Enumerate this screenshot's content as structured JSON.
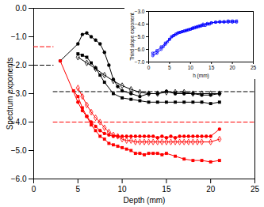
{
  "chart_data": [
    {
      "type": "line",
      "xlabel": "Depth (mm)",
      "ylabel": "Spectrum exponents",
      "xlim": [
        0,
        25
      ],
      "ylim": [
        -6,
        0
      ],
      "xticks": [
        0,
        5,
        10,
        15,
        20,
        25
      ],
      "yticks": [
        0,
        -1,
        -2,
        -3,
        -4,
        -5,
        -6
      ],
      "series": [
        {
          "color": "red",
          "line_style": "dashed",
          "x": [
            0,
            2.2
          ],
          "values": [
            -1.35,
            -1.35
          ]
        },
        {
          "color": "black",
          "line_style": "dashed",
          "x": [
            0,
            2.2
          ],
          "values": [
            -2.0,
            -2.0
          ]
        },
        {
          "color": "black",
          "line_style": "dashed",
          "x": [
            2.2,
            25
          ],
          "values": [
            -2.93,
            -2.93
          ]
        },
        {
          "color": "red",
          "line_style": "dashed",
          "x": [
            2.2,
            25
          ],
          "values": [
            -4.0,
            -4.0
          ]
        },
        {
          "color": "black",
          "marker": "circle",
          "line_style": "solid",
          "x": [
            3.0,
            5.0,
            5.5,
            6.0,
            6.5,
            7.0,
            7.5,
            8.0,
            8.5,
            9.0,
            9.5,
            10.0,
            11.0,
            12.0,
            13.0,
            14.0,
            15.0,
            16.0,
            17.0,
            18.0,
            19.0,
            20.0,
            21.0
          ],
          "values": [
            -1.85,
            -1.25,
            -0.92,
            -0.87,
            -1.0,
            -1.12,
            -1.25,
            -1.55,
            -2.0,
            -2.5,
            -2.75,
            -2.9,
            -3.0,
            -3.1,
            -3.0,
            -3.0,
            -2.92,
            -3.0,
            -3.0,
            -3.0,
            -3.05,
            -3.05,
            -3.0
          ]
        },
        {
          "color": "black",
          "marker": "square",
          "line_style": "solid",
          "x": [
            5.0,
            5.5,
            6.0,
            6.5,
            7.0,
            7.5,
            8.0,
            9.0,
            10.0,
            11.0,
            12.0,
            13.0,
            14.0,
            15.0,
            16.0,
            17.0,
            18.0,
            19.0,
            20.0,
            21.0
          ],
          "values": [
            -1.6,
            -1.65,
            -1.72,
            -1.92,
            -2.1,
            -2.35,
            -2.6,
            -3.0,
            -3.15,
            -3.2,
            -3.25,
            -3.3,
            -3.3,
            -3.3,
            -3.3,
            -3.3,
            -3.3,
            -3.3,
            -3.35,
            -3.3
          ]
        },
        {
          "color": "black",
          "marker": "open_diamond",
          "line_style": "solid",
          "x": [
            5.0,
            6.0,
            7.0,
            8.0,
            9.0,
            10.0,
            11.0,
            12.0,
            13.0,
            14.0,
            15.0,
            16.0,
            17.0,
            18.0,
            19.0,
            20.0,
            21.0
          ],
          "values": [
            -1.72,
            -1.92,
            -2.12,
            -2.35,
            -2.55,
            -2.72,
            -2.85,
            -2.95,
            -3.0,
            -3.0,
            -2.95,
            -2.95,
            -2.95,
            -3.0,
            -3.0,
            -3.0,
            -3.0
          ]
        },
        {
          "color": "red",
          "marker": "circle",
          "line_style": "solid",
          "x": [
            3.0,
            5.0,
            5.5,
            6.0,
            6.5,
            7.0,
            7.5,
            8.0,
            8.5,
            9.0,
            9.5,
            10.0,
            10.5,
            11.0,
            11.5,
            12.0,
            12.5,
            13.0,
            13.5,
            14.0,
            14.5,
            15.0,
            15.5,
            16.0,
            16.5,
            17.0,
            17.5,
            18.0,
            18.5,
            19.0,
            19.5,
            20.0,
            21.0
          ],
          "values": [
            -1.85,
            -3.3,
            -3.6,
            -3.8,
            -4.0,
            -4.15,
            -4.3,
            -4.4,
            -4.45,
            -4.5,
            -4.5,
            -4.5,
            -4.5,
            -4.5,
            -4.5,
            -4.5,
            -4.5,
            -4.5,
            -4.5,
            -4.55,
            -4.5,
            -4.55,
            -4.5,
            -4.55,
            -4.5,
            -4.5,
            -4.5,
            -4.5,
            -4.5,
            -4.5,
            -4.5,
            -4.5,
            -4.25
          ]
        },
        {
          "color": "red",
          "marker": "square",
          "line_style": "solid",
          "x": [
            4.5,
            5.0,
            5.5,
            6.0,
            6.5,
            7.0,
            7.5,
            8.0,
            8.5,
            9.0,
            9.5,
            10.0,
            10.5,
            11.0,
            11.5,
            12.0,
            12.5,
            13.0,
            13.5,
            14.0,
            14.5,
            15.0,
            16.0,
            17.0,
            18.0,
            19.0,
            20.0,
            21.0
          ],
          "values": [
            -2.9,
            -3.1,
            -3.5,
            -3.8,
            -4.1,
            -4.3,
            -4.5,
            -4.6,
            -4.75,
            -4.8,
            -4.85,
            -4.9,
            -4.95,
            -5.0,
            -5.1,
            -5.1,
            -5.15,
            -5.1,
            -5.1,
            -5.1,
            -5.15,
            -5.1,
            -5.2,
            -5.3,
            -5.35,
            -5.35,
            -5.4,
            -5.35
          ]
        },
        {
          "color": "red",
          "marker": "open_diamond",
          "line_style": "solid",
          "x": [
            5.0,
            5.5,
            6.0,
            6.5,
            7.0,
            7.5,
            8.0,
            8.5,
            9.0,
            9.5,
            10.0,
            10.5,
            11.0,
            11.5,
            12.0,
            12.5,
            13.0,
            13.5,
            14.0,
            14.5,
            15.0,
            15.5,
            16.0,
            16.5,
            17.0,
            17.5,
            18.0,
            18.5,
            19.0,
            20.0,
            21.0
          ],
          "values": [
            -2.8,
            -3.1,
            -3.4,
            -3.65,
            -3.85,
            -4.0,
            -4.2,
            -4.35,
            -4.45,
            -4.5,
            -4.6,
            -4.65,
            -4.65,
            -4.7,
            -4.7,
            -4.7,
            -4.7,
            -4.7,
            -4.7,
            -4.7,
            -4.7,
            -4.7,
            -4.7,
            -4.7,
            -4.7,
            -4.7,
            -4.7,
            -4.7,
            -4.7,
            -4.7,
            -4.6
          ]
        }
      ]
    },
    {
      "type": "line",
      "xlabel": "h (mm)",
      "ylabel": "Third slope exponent",
      "xlim": [
        0,
        25
      ],
      "ylim": [
        -7,
        -3
      ],
      "xticks": [
        0,
        5,
        10,
        15,
        20,
        25
      ],
      "yticks": [
        -7,
        -6,
        -5,
        -4,
        -3
      ],
      "series": [
        {
          "color": "blue",
          "marker": "open_square",
          "line_style": "solid",
          "x": [
            1.0,
            2.0,
            3.0,
            4.0,
            5.0,
            5.5,
            6.0,
            6.5,
            7.0,
            7.5,
            8.0,
            8.5,
            9.0,
            9.5,
            10.0,
            10.5,
            11.0,
            11.5,
            12.0,
            12.5,
            13.0,
            13.5,
            14.0,
            14.5,
            15.0,
            16.0,
            17.0,
            18.0,
            19.0,
            20.0,
            21.0
          ],
          "values": [
            -6.3,
            -6.1,
            -5.8,
            -5.5,
            -5.2,
            -5.0,
            -4.9,
            -4.8,
            -4.7,
            -4.65,
            -4.6,
            -4.55,
            -4.5,
            -4.45,
            -4.4,
            -4.35,
            -4.3,
            -4.25,
            -4.2,
            -4.15,
            -4.1,
            -4.1,
            -4.0,
            -4.0,
            -3.9,
            -3.85,
            -3.8,
            -3.8,
            -3.75,
            -3.75,
            -3.75
          ]
        },
        {
          "color": "blue",
          "marker": "open_circle",
          "line_style": "solid",
          "x": [
            1.0,
            2.0,
            3.0,
            3.5,
            4.0,
            4.5,
            5.0,
            5.5,
            6.0,
            6.5,
            7.0,
            7.5,
            8.0,
            8.5,
            9.0,
            9.5,
            10.0,
            10.5,
            11.0,
            11.5,
            12.0,
            12.5,
            13.0,
            14.0,
            15.0,
            16.0,
            17.0,
            18.0,
            19.0,
            20.0,
            21.0
          ],
          "values": [
            -6.5,
            -6.3,
            -6.0,
            -5.8,
            -5.6,
            -5.4,
            -5.2,
            -5.0,
            -4.9,
            -4.8,
            -4.7,
            -4.65,
            -4.6,
            -4.55,
            -4.5,
            -4.45,
            -4.4,
            -4.3,
            -4.25,
            -4.2,
            -4.15,
            -4.1,
            -4.0,
            -3.95,
            -3.9,
            -3.85,
            -3.85,
            -3.85,
            -3.85,
            -3.85,
            -3.85
          ]
        }
      ]
    }
  ]
}
